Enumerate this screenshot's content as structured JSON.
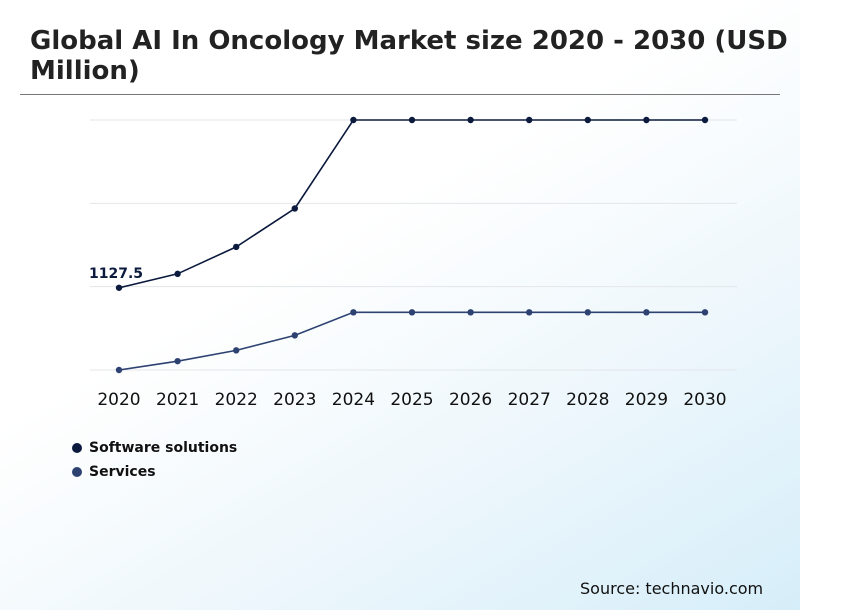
{
  "title": "Global AI In Oncology Market size 2020 - 2030 (USD Million)",
  "source": "Source: technavio.com",
  "chart_data": {
    "type": "line",
    "title": "Global AI In Oncology Market size 2020 - 2030 (USD Million)",
    "x": [
      "2020",
      "2021",
      "2022",
      "2023",
      "2024",
      "2025",
      "2026",
      "2027",
      "2028",
      "2029",
      "2030"
    ],
    "series": [
      {
        "name": "Software solutions",
        "color": "#0b1a3d",
        "values": [
          1127.5,
          1200,
          1340,
          1540,
          2000,
          2000,
          2000,
          2000,
          2000,
          2000,
          2000
        ]
      },
      {
        "name": "Services",
        "color": "#2e4272",
        "values": [
          700,
          746,
          802,
          880,
          1000,
          1000,
          1000,
          1000,
          1000,
          1000,
          1000
        ]
      }
    ],
    "data_labels": [
      {
        "series": "Software solutions",
        "x": "2020",
        "text": "1127.5"
      }
    ],
    "ylim": [
      700,
      2000
    ],
    "grid": true,
    "legend": "bottom-left"
  }
}
